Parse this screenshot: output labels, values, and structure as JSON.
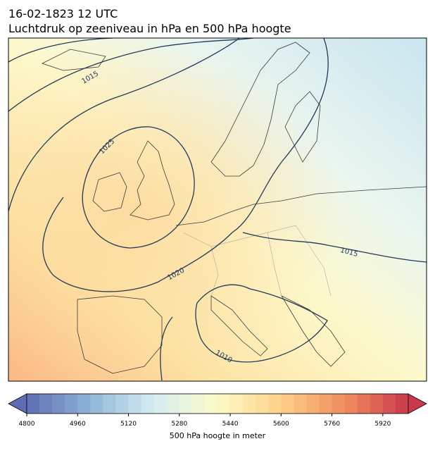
{
  "title": "16-02-1823 12 UTC",
  "subtitle": "Luchtdruk op zeeniveau in hPa en 500 hPa hoogte",
  "contour_labels": [
    1015,
    1025,
    1020,
    1015,
    1010
  ],
  "colorbar": {
    "label": "500 hPa hoogte in meter",
    "range": [
      4800,
      6000
    ],
    "step": 40,
    "ticks": [
      4800,
      4960,
      5120,
      5280,
      5440,
      5600,
      5760,
      5920
    ]
  }
}
